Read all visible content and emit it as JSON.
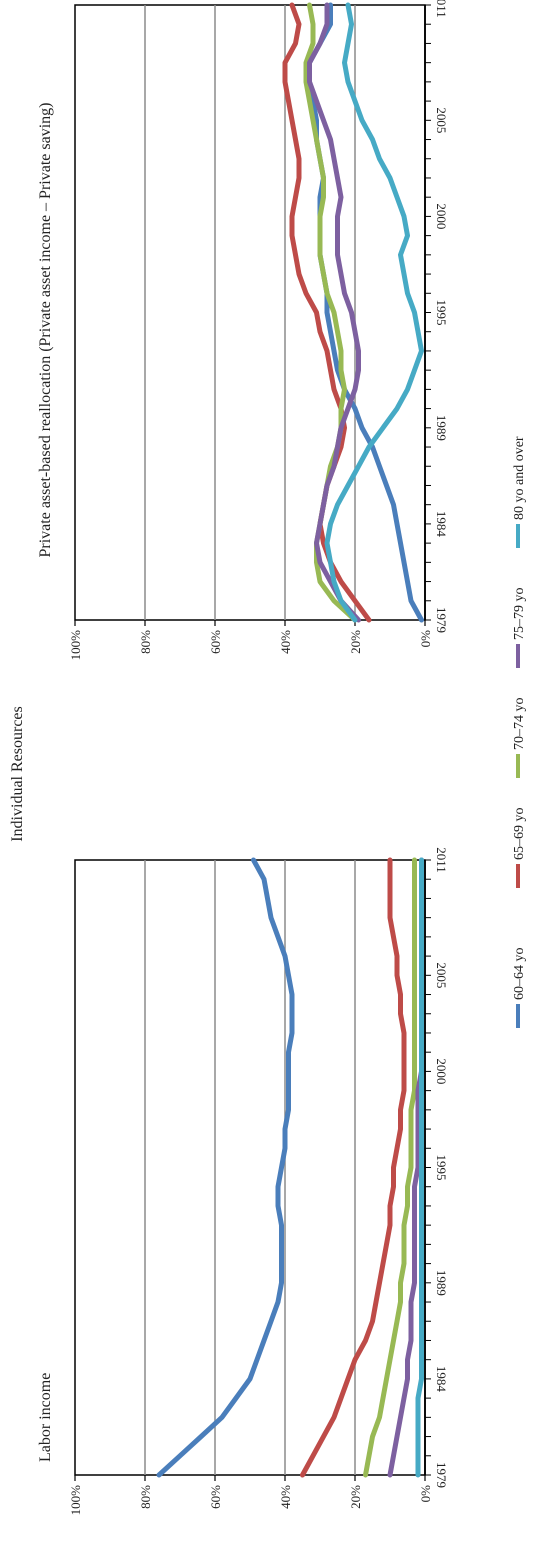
{
  "figure": {
    "main_title": "Individual Resources"
  },
  "legend": [
    {
      "label": "60–64 yo",
      "color": "#4a7ebb"
    },
    {
      "label": "65–69 yo",
      "color": "#be4b48"
    },
    {
      "label": "70–74 yo",
      "color": "#98b954"
    },
    {
      "label": "75–79 yo",
      "color": "#7d60a0"
    },
    {
      "label": "80 yo and over",
      "color": "#46aac5"
    }
  ],
  "chart_data": [
    {
      "type": "line",
      "title": "Private asset-based reallocation (Private asset income – Private saving)",
      "xlabel": "",
      "ylabel": "",
      "x_ticks": [
        "1979",
        "1984",
        "1989",
        "1995",
        "2000",
        "2005",
        "2011"
      ],
      "y_ticks": [
        "0%",
        "20%",
        "40%",
        "60%",
        "80%",
        "100%"
      ],
      "ylim": [
        0,
        100
      ],
      "x": [
        1979,
        1980,
        1981,
        1982,
        1983,
        1984,
        1985,
        1986,
        1987,
        1988,
        1989,
        1990,
        1991,
        1992,
        1993,
        1994,
        1995,
        1996,
        1997,
        1998,
        1999,
        2000,
        2001,
        2002,
        2003,
        2004,
        2005,
        2006,
        2007,
        2008,
        2009,
        2010,
        2011
      ],
      "series": [
        {
          "name": "60–64 yo",
          "color": "#4a7ebb",
          "values": [
            1,
            4,
            5,
            6,
            7,
            8,
            9,
            11,
            13,
            15,
            18,
            20,
            23,
            25,
            26,
            27,
            28,
            28,
            29,
            30,
            30,
            30,
            30,
            29,
            30,
            31,
            31,
            32,
            33,
            33,
            30,
            27,
            27
          ]
        },
        {
          "name": "65–69 yo",
          "color": "#be4b48",
          "values": [
            16,
            20,
            24,
            27,
            29,
            30,
            29,
            28,
            26,
            24,
            23,
            24,
            26,
            27,
            28,
            30,
            31,
            34,
            36,
            37,
            38,
            38,
            37,
            36,
            36,
            37,
            38,
            39,
            40,
            40,
            37,
            36,
            38
          ]
        },
        {
          "name": "70–74 yo",
          "color": "#98b954",
          "values": [
            20,
            26,
            30,
            31,
            31,
            30,
            29,
            28,
            27,
            25,
            24,
            24,
            23,
            24,
            24,
            25,
            26,
            28,
            29,
            30,
            30,
            30,
            29,
            29,
            30,
            31,
            32,
            33,
            34,
            34,
            32,
            32,
            33
          ]
        },
        {
          "name": "75–79 yo",
          "color": "#7d60a0",
          "values": [
            19,
            24,
            27,
            30,
            31,
            30,
            29,
            28,
            26,
            25,
            24,
            22,
            20,
            19,
            19,
            20,
            21,
            23,
            24,
            25,
            25,
            25,
            24,
            25,
            26,
            27,
            29,
            31,
            33,
            33,
            30,
            28,
            28
          ]
        },
        {
          "name": "80 yo and over",
          "color": "#46aac5",
          "values": [
            20,
            24,
            26,
            27,
            28,
            27,
            25,
            22,
            19,
            16,
            12,
            8,
            5,
            3,
            1,
            2,
            3,
            5,
            6,
            7,
            5,
            6,
            8,
            10,
            13,
            15,
            18,
            20,
            22,
            23,
            22,
            21,
            22
          ]
        }
      ]
    },
    {
      "type": "line",
      "title": "Labor income",
      "xlabel": "",
      "ylabel": "",
      "x_ticks": [
        "1979",
        "1984",
        "1989",
        "1995",
        "2000",
        "2005",
        "2011"
      ],
      "y_ticks": [
        "0%",
        "20%",
        "40%",
        "60%",
        "80%",
        "100%"
      ],
      "ylim": [
        0,
        100
      ],
      "x": [
        1979,
        1980,
        1981,
        1982,
        1983,
        1984,
        1985,
        1986,
        1987,
        1988,
        1989,
        1990,
        1991,
        1992,
        1993,
        1994,
        1995,
        1996,
        1997,
        1998,
        1999,
        2000,
        2001,
        2002,
        2003,
        2004,
        2005,
        2006,
        2007,
        2008,
        2009,
        2010,
        2011
      ],
      "series": [
        {
          "name": "60–64 yo",
          "color": "#4a7ebb",
          "values": [
            76,
            70,
            64,
            58,
            54,
            50,
            48,
            46,
            44,
            42,
            41,
            41,
            41,
            41,
            42,
            42,
            41,
            40,
            40,
            39,
            39,
            39,
            39,
            38,
            38,
            38,
            39,
            40,
            42,
            44,
            45,
            46,
            49
          ]
        },
        {
          "name": "65–69 yo",
          "color": "#be4b48",
          "values": [
            35,
            32,
            29,
            26,
            24,
            22,
            20,
            17,
            15,
            14,
            13,
            12,
            11,
            10,
            10,
            9,
            9,
            8,
            7,
            7,
            6,
            6,
            6,
            6,
            7,
            7,
            8,
            8,
            9,
            10,
            10,
            10,
            10
          ]
        },
        {
          "name": "70–74 yo",
          "color": "#98b954",
          "values": [
            17,
            16,
            15,
            13,
            12,
            11,
            10,
            9,
            8,
            7,
            7,
            6,
            6,
            6,
            5,
            5,
            4,
            4,
            4,
            4,
            3,
            3,
            3,
            3,
            3,
            3,
            3,
            3,
            3,
            3,
            3,
            3,
            3
          ]
        },
        {
          "name": "75–79 yo",
          "color": "#7d60a0",
          "values": [
            10,
            9,
            8,
            7,
            6,
            5,
            5,
            4,
            4,
            4,
            3,
            3,
            3,
            3,
            3,
            3,
            2,
            2,
            2,
            2,
            2,
            1,
            1,
            1,
            1,
            1,
            1,
            1,
            1,
            1,
            1,
            1,
            1
          ]
        },
        {
          "name": "80 yo and over",
          "color": "#46aac5",
          "values": [
            2,
            2,
            2,
            2,
            2,
            1,
            1,
            1,
            1,
            1,
            1,
            1,
            1,
            1,
            1,
            1,
            1,
            1,
            1,
            1,
            1,
            1,
            1,
            1,
            1,
            1,
            1,
            1,
            1,
            1,
            1,
            1,
            1
          ]
        }
      ]
    }
  ]
}
